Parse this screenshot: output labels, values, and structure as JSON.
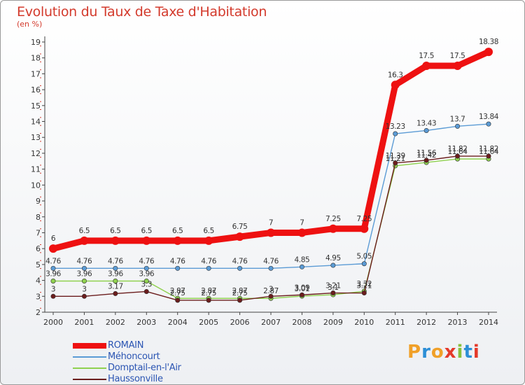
{
  "chart_data": {
    "type": "line",
    "title": "Evolution du Taux de Taxe d'Habitation",
    "subtitle": "(en %)",
    "x": [
      2000,
      2001,
      2002,
      2003,
      2004,
      2005,
      2006,
      2007,
      2008,
      2009,
      2010,
      2011,
      2012,
      2013,
      2014
    ],
    "ylim": [
      2,
      19
    ],
    "yticks": [
      2,
      3,
      4,
      5,
      6,
      7,
      8,
      9,
      10,
      11,
      12,
      13,
      14,
      15,
      16,
      17,
      18,
      19
    ],
    "grid": false,
    "legend_position": "bottom-left",
    "series": [
      {
        "name": "ROMAIN",
        "color": "#ee1111",
        "emphasis": true,
        "values": [
          6,
          6.5,
          6.5,
          6.5,
          6.5,
          6.5,
          6.75,
          7,
          7,
          7.25,
          7.25,
          16.3,
          17.5,
          17.5,
          18.38
        ],
        "labels": [
          "6",
          "6.5",
          "6.5",
          "6.5",
          "6.5",
          "6.5",
          "6.75",
          "7",
          "7",
          "7.25",
          "7.25",
          "16.3",
          "17.5",
          "17.5",
          "18.38"
        ]
      },
      {
        "name": "Méhoncourt",
        "color": "#5b9bd5",
        "emphasis": false,
        "values": [
          4.76,
          4.76,
          4.76,
          4.76,
          4.76,
          4.76,
          4.76,
          4.76,
          4.85,
          4.95,
          5.05,
          13.23,
          13.43,
          13.7,
          13.84
        ],
        "labels": [
          "4.76",
          "4.76",
          "4.76",
          "4.76",
          "4.76",
          "4.76",
          "4.76",
          "4.76",
          "4.85",
          "4.95",
          "5.05",
          "13.23",
          "13.43",
          "13.7",
          "13.84"
        ]
      },
      {
        "name": "Domptail-en-l'Air",
        "color": "#8fd14f",
        "emphasis": false,
        "values": [
          3.96,
          3.96,
          3.96,
          3.96,
          2.87,
          2.87,
          2.87,
          2.87,
          3.01,
          3.1,
          3.32,
          11.21,
          11.42,
          11.64,
          11.64
        ],
        "labels": [
          "3.96",
          "3.96",
          "3.96",
          "3.96",
          "2.87",
          "2.87",
          "2.87",
          "2.87",
          "3.01",
          "3.1",
          "3.32",
          "11.21",
          "11.42",
          "11.64",
          "11.64"
        ]
      },
      {
        "name": "Haussonville",
        "color": "#6b1d1d",
        "emphasis": false,
        "values": [
          3,
          3,
          3.17,
          3.3,
          2.75,
          2.75,
          2.75,
          3,
          3.09,
          3.21,
          3.21,
          11.39,
          11.56,
          11.82,
          11.82
        ],
        "labels": [
          "3",
          "3",
          "3.17",
          "3.3",
          "2.75",
          "2.75",
          "2.75",
          "3",
          "3.09",
          "3.21",
          "3.21",
          "11.39",
          "11.56",
          "11.82",
          "11.82"
        ]
      }
    ]
  },
  "logo": {
    "text": "Proxiti",
    "letter_colors": [
      "#f0a028",
      "#2d8fd6",
      "#f0a028",
      "#e43a2a",
      "#88c03c",
      "#2d8fd6",
      "#e43a2a"
    ]
  }
}
